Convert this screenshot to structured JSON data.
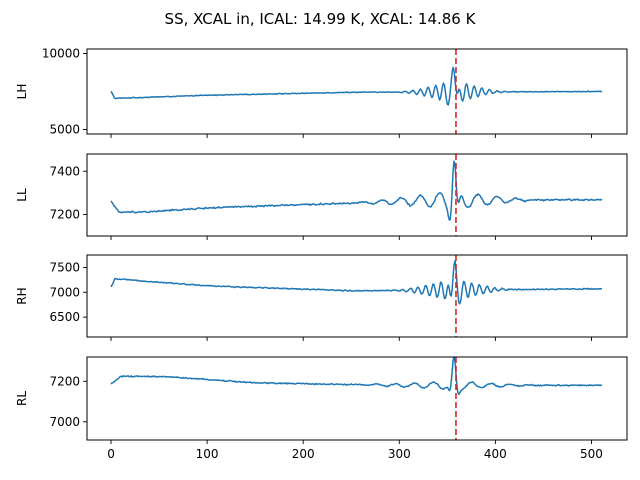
{
  "chart_data": {
    "title": "SS, XCAL in, ICAL: 14.99 K, XCAL: 14.86 K",
    "type": "line",
    "marker_x": 359,
    "marker_color": "#d62728",
    "series_color": "#1f77b4",
    "xlim": [
      -25,
      537
    ],
    "x_ticks": [
      0,
      100,
      200,
      300,
      400,
      500
    ],
    "x_tick_labels": [
      "0",
      "100",
      "200",
      "300",
      "400",
      "500"
    ],
    "n_samples": 512,
    "subplots": [
      {
        "ylabel": "LH",
        "ylim": [
          4700,
          10300
        ],
        "y_ticks": [
          5000,
          10000
        ],
        "y_tick_labels": [
          "5000",
          "10000"
        ],
        "baseline": [
          [
            0,
            7500
          ],
          [
            4,
            7050
          ],
          [
            100,
            7250
          ],
          [
            250,
            7450
          ],
          [
            510,
            7500
          ]
        ],
        "peak_x": 357,
        "peak_amp": 2000,
        "osc_amp": 850,
        "osc_period": 8,
        "osc_start": 290,
        "osc_end": 420,
        "noise": 40
      },
      {
        "ylabel": "LL",
        "ylim": [
          7100,
          7480
        ],
        "y_ticks": [
          7200,
          7400
        ],
        "y_tick_labels": [
          "7200",
          "7400"
        ],
        "baseline": [
          [
            0,
            7262
          ],
          [
            8,
            7210
          ],
          [
            40,
            7212
          ],
          [
            100,
            7230
          ],
          [
            200,
            7245
          ],
          [
            330,
            7265
          ],
          [
            510,
            7268
          ]
        ],
        "peak_x": 357,
        "peak_amp": 180,
        "osc_amp": 45,
        "osc_period": 20,
        "osc_start": 220,
        "osc_end": 470,
        "noise": 6
      },
      {
        "ylabel": "RH",
        "ylim": [
          6100,
          7750
        ],
        "y_ticks": [
          6500,
          7000,
          7500
        ],
        "y_tick_labels": [
          "6500",
          "7000",
          "7500"
        ],
        "baseline": [
          [
            0,
            7100
          ],
          [
            4,
            7270
          ],
          [
            100,
            7130
          ],
          [
            250,
            7030
          ],
          [
            510,
            7070
          ]
        ],
        "peak_x": 357,
        "peak_amp": 600,
        "osc_amp": 240,
        "osc_period": 8,
        "osc_start": 280,
        "osc_end": 430,
        "noise": 18
      },
      {
        "ylabel": "RL",
        "ylim": [
          6910,
          7320
        ],
        "y_ticks": [
          7000,
          7200
        ],
        "y_tick_labels": [
          "7000",
          "7200"
        ],
        "baseline": [
          [
            0,
            7185
          ],
          [
            10,
            7225
          ],
          [
            60,
            7222
          ],
          [
            150,
            7192
          ],
          [
            300,
            7180
          ],
          [
            510,
            7180
          ]
        ],
        "peak_x": 357,
        "peak_amp": 125,
        "osc_amp": 22,
        "osc_period": 20,
        "osc_start": 220,
        "osc_end": 470,
        "noise": 5
      }
    ]
  }
}
